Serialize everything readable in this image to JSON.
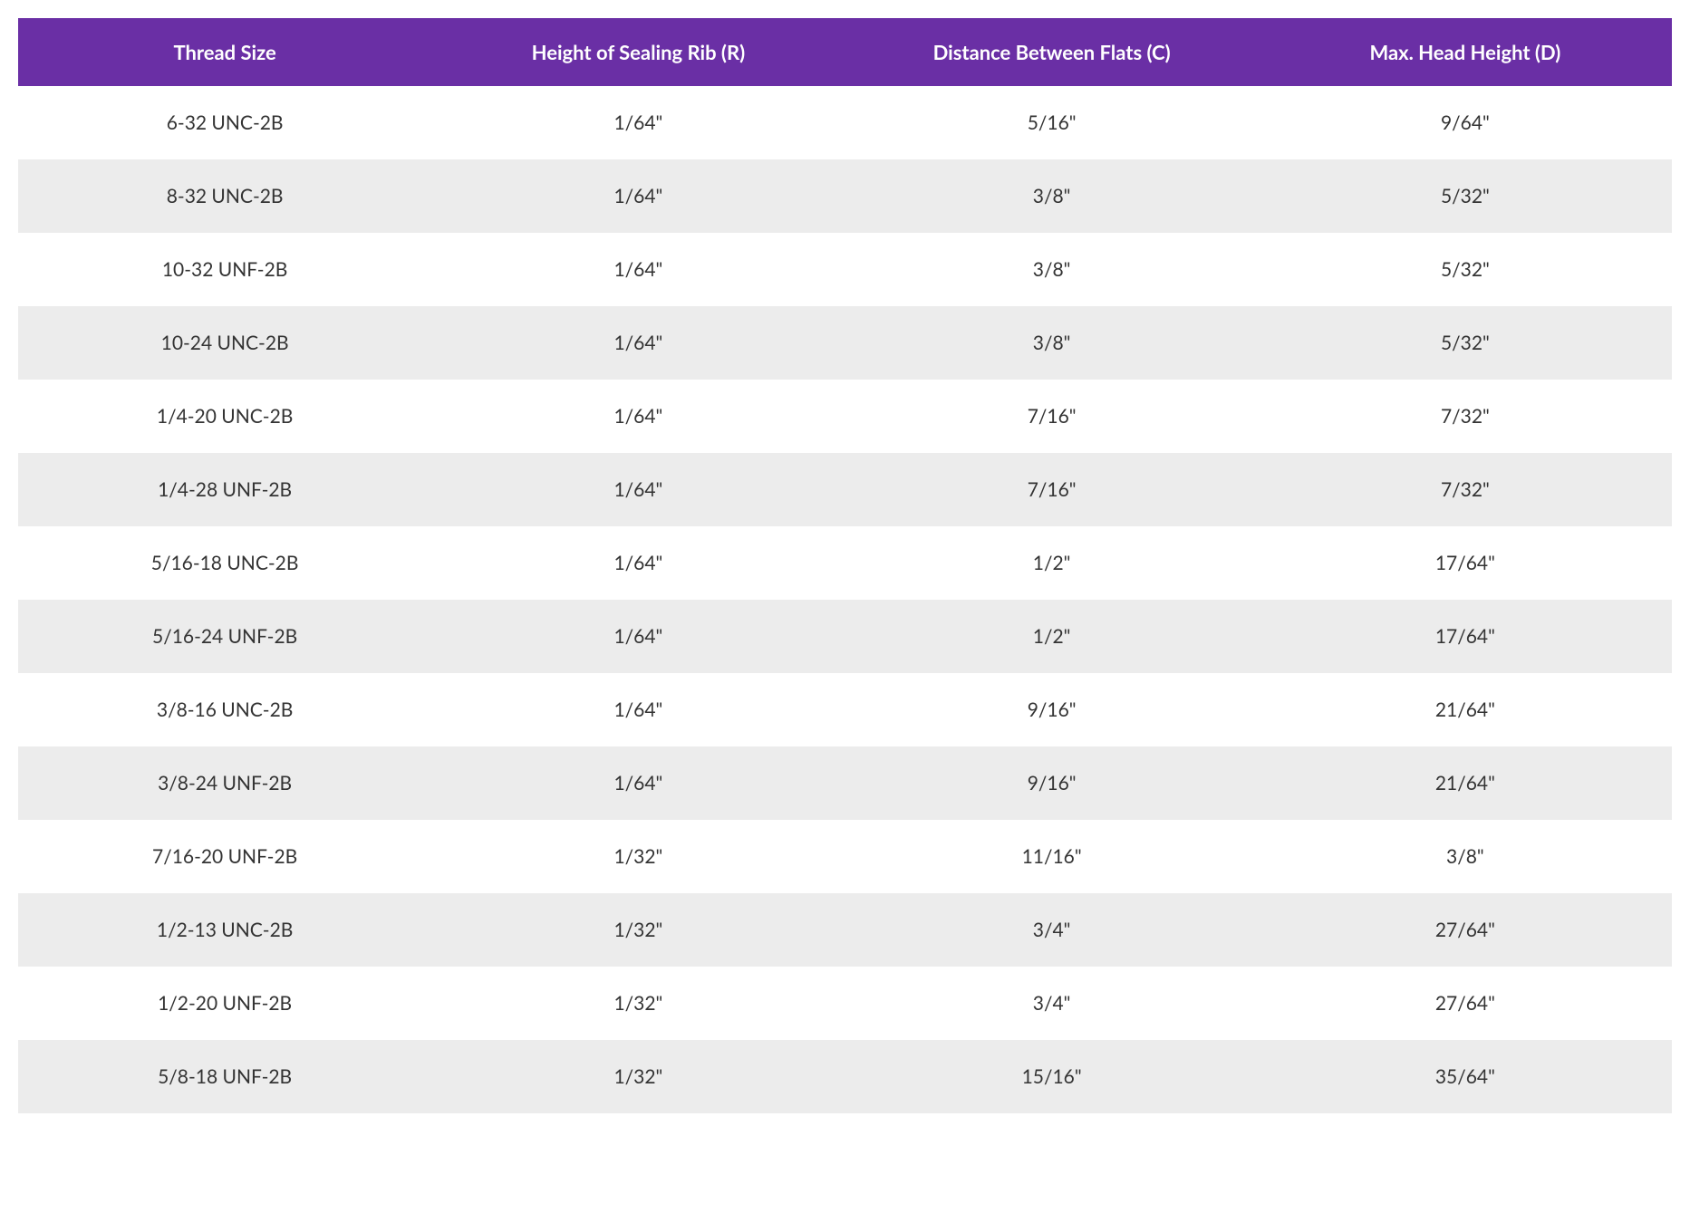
{
  "table": {
    "type": "table",
    "header_bg_color": "#6a2fa5",
    "header_text_color": "#ffffff",
    "row_odd_bg": "#ffffff",
    "row_even_bg": "#ececec",
    "cell_text_color": "#333333",
    "header_fontsize": 22,
    "cell_fontsize": 21,
    "columns": [
      "Thread Size",
      "Height of Sealing Rib (R)",
      "Distance Between Flats (C)",
      "Max. Head Height (D)"
    ],
    "rows": [
      [
        "6-32 UNC-2B",
        "1/64\"",
        "5/16\"",
        "9/64\""
      ],
      [
        "8-32 UNC-2B",
        "1/64\"",
        "3/8\"",
        "5/32\""
      ],
      [
        "10-32 UNF-2B",
        "1/64\"",
        "3/8\"",
        "5/32\""
      ],
      [
        "10-24 UNC-2B",
        "1/64\"",
        "3/8\"",
        "5/32\""
      ],
      [
        "1/4-20 UNC-2B",
        "1/64\"",
        "7/16\"",
        "7/32\""
      ],
      [
        "1/4-28 UNF-2B",
        "1/64\"",
        "7/16\"",
        "7/32\""
      ],
      [
        "5/16-18 UNC-2B",
        "1/64\"",
        "1/2\"",
        "17/64\""
      ],
      [
        "5/16-24 UNF-2B",
        "1/64\"",
        "1/2\"",
        "17/64\""
      ],
      [
        "3/8-16 UNC-2B",
        "1/64\"",
        "9/16\"",
        "21/64\""
      ],
      [
        "3/8-24 UNF-2B",
        "1/64\"",
        "9/16\"",
        "21/64\""
      ],
      [
        "7/16-20 UNF-2B",
        "1/32\"",
        "11/16\"",
        "3/8\""
      ],
      [
        "1/2-13 UNC-2B",
        "1/32\"",
        "3/4\"",
        "27/64\""
      ],
      [
        "1/2-20 UNF-2B",
        "1/32\"",
        "3/4\"",
        "27/64\""
      ],
      [
        "5/8-18 UNF-2B",
        "1/32\"",
        "15/16\"",
        "35/64\""
      ]
    ]
  }
}
